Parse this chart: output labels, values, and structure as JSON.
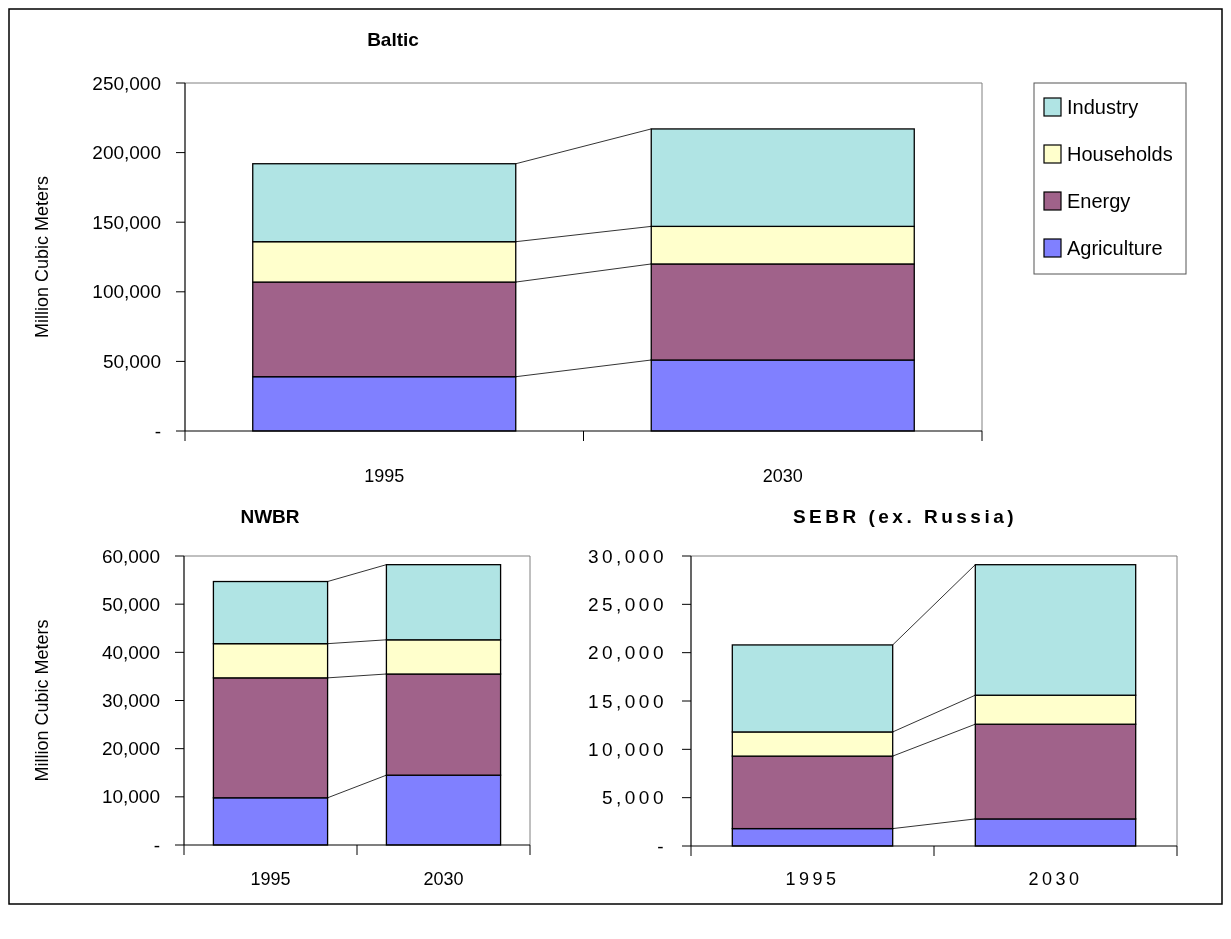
{
  "chart_data": [
    {
      "type": "bar",
      "title": "Baltic",
      "ylabel": "Million Cubic Meters",
      "categories": [
        "1995",
        "2030"
      ],
      "stacked": true,
      "legend": "right",
      "ylim": [
        0,
        250000
      ],
      "yticks": [
        {
          "value": 0,
          "label": "-"
        },
        {
          "value": 50000,
          "label": "50,000"
        },
        {
          "value": 100000,
          "label": "100,000"
        },
        {
          "value": 150000,
          "label": "150,000"
        },
        {
          "value": 200000,
          "label": "200,000"
        },
        {
          "value": 250000,
          "label": "250,000"
        }
      ],
      "series": [
        {
          "name": "Agriculture",
          "color": "#8080ff",
          "values": [
            39000,
            51000
          ]
        },
        {
          "name": "Energy",
          "color": "#a0628a",
          "values": [
            68000,
            69000
          ]
        },
        {
          "name": "Households",
          "color": "#ffffcc",
          "values": [
            29000,
            27000
          ]
        },
        {
          "name": "Industry",
          "color": "#b0e4e4",
          "values": [
            56000,
            70000
          ]
        }
      ]
    },
    {
      "type": "bar",
      "title": "NWBR",
      "ylabel": "Million Cubic Meters",
      "categories": [
        "1995",
        "2030"
      ],
      "stacked": true,
      "ylim": [
        0,
        60000
      ],
      "yticks": [
        {
          "value": 0,
          "label": "-"
        },
        {
          "value": 10000,
          "label": "10,000"
        },
        {
          "value": 20000,
          "label": "20,000"
        },
        {
          "value": 30000,
          "label": "30,000"
        },
        {
          "value": 40000,
          "label": "40,000"
        },
        {
          "value": 50000,
          "label": "50,000"
        },
        {
          "value": 60000,
          "label": "60,000"
        }
      ],
      "series": [
        {
          "color": "#8080ff",
          "values": [
            9800,
            14500
          ]
        },
        {
          "color": "#a0628a",
          "values": [
            24900,
            21000
          ]
        },
        {
          "color": "#ffffcc",
          "values": [
            7100,
            7100
          ]
        },
        {
          "color": "#b0e4e4",
          "values": [
            12900,
            15600
          ]
        }
      ]
    },
    {
      "type": "bar",
      "title": "SEBR (ex. Russia)",
      "categories": [
        "1995",
        "2030"
      ],
      "stacked": true,
      "ylim": [
        0,
        30000
      ],
      "yticks": [
        {
          "value": 0,
          "label": "-"
        },
        {
          "value": 5000,
          "label": "5,000"
        },
        {
          "value": 10000,
          "label": "10,000"
        },
        {
          "value": 15000,
          "label": "15,000"
        },
        {
          "value": 20000,
          "label": "20,000"
        },
        {
          "value": 25000,
          "label": "25,000"
        },
        {
          "value": 30000,
          "label": "30,000"
        }
      ],
      "series": [
        {
          "color": "#8080ff",
          "values": [
            1800,
            2800
          ]
        },
        {
          "color": "#a0628a",
          "values": [
            7500,
            9800
          ]
        },
        {
          "color": "#ffffcc",
          "values": [
            2500,
            3000
          ]
        },
        {
          "color": "#b0e4e4",
          "values": [
            9000,
            13500
          ]
        }
      ]
    }
  ]
}
